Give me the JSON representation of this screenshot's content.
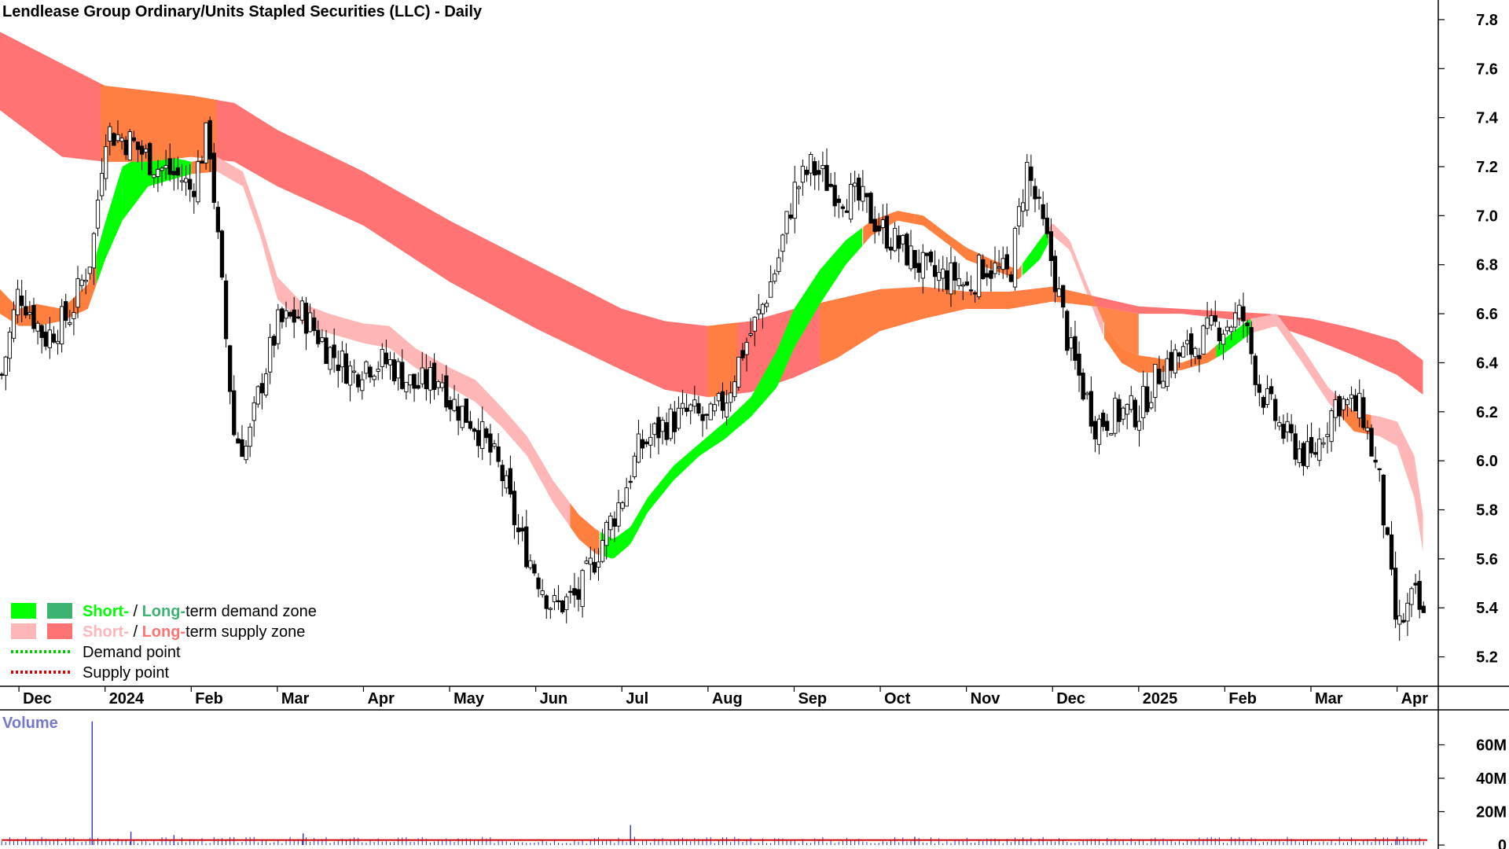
{
  "title": "Lendlease Group Ordinary/Units Stapled Securities (LLC) - Daily",
  "volume_label": "Volume",
  "legend": {
    "items": [
      {
        "swatches": [
          "#00ff00",
          "#3cb371"
        ],
        "part1": "Short-",
        "sep": " / ",
        "part2": "Long-",
        "rest": "term demand zone",
        "color1": "#00ff00",
        "color2": "#3cb371",
        "kind": "box"
      },
      {
        "swatches": [
          "#ffb6b6",
          "#ff7373"
        ],
        "part1": "Short-",
        "sep": " / ",
        "part2": "Long-",
        "rest": "term supply zone",
        "color1": "#ffb6b6",
        "color2": "#ff7373",
        "kind": "box"
      },
      {
        "swatches": [
          "#00cc00"
        ],
        "part1": "",
        "sep": "",
        "part2": "",
        "rest": "Demand point",
        "color1": "#000000",
        "color2": "#000000",
        "kind": "dots"
      },
      {
        "swatches": [
          "#dd0000"
        ],
        "part1": "",
        "sep": "",
        "part2": "",
        "rest": "Supply point",
        "color1": "#000000",
        "color2": "#000000",
        "kind": "dots"
      }
    ]
  },
  "colors": {
    "candle": "#000000",
    "long_supply": "#ff7373",
    "short_supply": "#ffb6b6",
    "short_demand": "#00ff00",
    "overlap": "#ff7f3f",
    "volume_bar": "#3333cc",
    "volume_line": "#cc0000",
    "axis_text": "#000000",
    "volume_text": "#7777cc"
  },
  "chart_data": {
    "type": "line",
    "subtype": "candlestick",
    "title": "Lendlease Group Ordinary/Units Stapled Securities (LLC) - Daily",
    "price_axis": {
      "ticks": [
        "5.2",
        "5.4",
        "5.6",
        "5.8",
        "6.0",
        "6.2",
        "6.4",
        "6.6",
        "6.8",
        "7.0",
        "7.2",
        "7.4",
        "7.6",
        "7.8"
      ],
      "range": [
        5.08,
        7.88
      ],
      "side": "right"
    },
    "volume_axis": {
      "ticks": [
        "0",
        "20M",
        "40M",
        "60M"
      ],
      "range": [
        0,
        80
      ],
      "unit": "M",
      "side": "right"
    },
    "month_labels": [
      "Dec",
      "2024",
      "Feb",
      "Mar",
      "Apr",
      "May",
      "Jun",
      "Jul",
      "Aug",
      "Sep",
      "Oct",
      "Nov",
      "Dec",
      "2025",
      "Feb",
      "Mar",
      "Apr"
    ],
    "month_pos": [
      0.0,
      1.0,
      2.0,
      3.0,
      4.0,
      5.0,
      6.0,
      7.0,
      8.0,
      9.0,
      10.0,
      11.0,
      12.0,
      13.0,
      14.0,
      15.0,
      16.0
    ],
    "x_range": [
      -0.22,
      16.46
    ],
    "close_series": {
      "name": "Close",
      "x": [
        -0.2,
        0.0,
        0.3,
        0.6,
        0.85,
        1.0,
        1.3,
        1.6,
        1.9,
        2.0,
        2.2,
        2.5,
        2.65,
        2.8,
        3.0,
        3.3,
        3.6,
        3.9,
        4.0,
        4.3,
        4.6,
        4.9,
        5.0,
        5.3,
        5.6,
        5.8,
        6.0,
        6.2,
        6.5,
        6.8,
        7.0,
        7.2,
        7.5,
        7.8,
        8.0,
        8.2,
        8.4,
        8.6,
        8.8,
        9.0,
        9.2,
        9.5,
        9.8,
        10.0,
        10.3,
        10.6,
        10.9,
        11.0,
        11.2,
        11.5,
        11.7,
        11.85,
        12.0,
        12.2,
        12.5,
        12.8,
        13.0,
        13.3,
        13.6,
        13.9,
        14.0,
        14.2,
        14.4,
        14.7,
        15.0,
        15.3,
        15.6,
        15.8,
        15.95,
        16.0,
        16.2,
        16.35
      ],
      "y": [
        6.35,
        6.7,
        6.5,
        6.6,
        6.85,
        7.35,
        7.3,
        7.2,
        7.15,
        7.1,
        7.35,
        6.1,
        6.05,
        6.3,
        6.55,
        6.6,
        6.45,
        6.35,
        6.4,
        6.4,
        6.3,
        6.35,
        6.25,
        6.15,
        5.95,
        5.7,
        5.55,
        5.4,
        5.45,
        5.7,
        5.85,
        6.05,
        6.15,
        6.2,
        6.15,
        6.25,
        6.45,
        6.6,
        6.8,
        7.1,
        7.2,
        7.1,
        7.05,
        6.95,
        6.85,
        6.75,
        6.75,
        6.7,
        6.8,
        6.75,
        7.2,
        7.0,
        6.8,
        6.45,
        6.15,
        6.2,
        6.2,
        6.4,
        6.45,
        6.55,
        6.55,
        6.6,
        6.3,
        6.1,
        6.0,
        6.25,
        6.2,
        5.9,
        5.45,
        5.3,
        5.45,
        5.3
      ]
    },
    "long_term_band": {
      "name": "Long-term zone",
      "x": [
        -0.22,
        0.5,
        1.0,
        1.5,
        2.0,
        2.5,
        3.0,
        4.0,
        5.0,
        6.0,
        7.0,
        7.5,
        8.0,
        8.5,
        9.0,
        9.5,
        10.0,
        10.5,
        11.0,
        11.5,
        12.0,
        12.5,
        13.0,
        13.5,
        14.0,
        14.5,
        15.0,
        15.5,
        16.0,
        16.3
      ],
      "upper": [
        7.75,
        7.62,
        7.53,
        7.51,
        7.49,
        7.46,
        7.35,
        7.18,
        6.98,
        6.8,
        6.62,
        6.57,
        6.55,
        6.57,
        6.62,
        6.66,
        6.7,
        6.71,
        6.69,
        6.69,
        6.71,
        6.67,
        6.63,
        6.62,
        6.61,
        6.6,
        6.58,
        6.54,
        6.49,
        6.41
      ],
      "lower": [
        7.43,
        7.24,
        7.22,
        7.22,
        7.24,
        7.22,
        7.12,
        6.96,
        6.73,
        6.54,
        6.37,
        6.29,
        6.26,
        6.28,
        6.34,
        6.42,
        6.53,
        6.58,
        6.62,
        6.62,
        6.65,
        6.63,
        6.6,
        6.6,
        6.58,
        6.56,
        6.5,
        6.43,
        6.35,
        6.27
      ]
    },
    "short_term_band": {
      "name": "Short-term zone",
      "x": [
        -0.22,
        0.0,
        0.2,
        0.5,
        0.8,
        1.0,
        1.2,
        1.5,
        2.0,
        2.3,
        2.6,
        2.8,
        3.0,
        3.3,
        3.6,
        4.0,
        4.3,
        4.6,
        5.0,
        5.3,
        5.6,
        5.9,
        6.2,
        6.5,
        6.7,
        6.9,
        7.1,
        7.3,
        7.6,
        7.9,
        8.2,
        8.5,
        8.8,
        9.0,
        9.3,
        9.6,
        9.9,
        10.2,
        10.5,
        10.8,
        11.0,
        11.3,
        11.6,
        11.85,
        12.0,
        12.2,
        12.4,
        12.6,
        12.8,
        13.0,
        13.2,
        13.5,
        13.8,
        14.0,
        14.3,
        14.6,
        14.9,
        15.2,
        15.5,
        15.8,
        16.0,
        16.2,
        16.3
      ],
      "upper": [
        6.7,
        6.62,
        6.64,
        6.62,
        6.72,
        6.97,
        7.2,
        7.26,
        7.22,
        7.24,
        7.18,
        6.98,
        6.75,
        6.64,
        6.6,
        6.56,
        6.55,
        6.46,
        6.38,
        6.33,
        6.22,
        6.1,
        5.92,
        5.78,
        5.72,
        5.68,
        5.73,
        5.85,
        5.98,
        6.07,
        6.16,
        6.26,
        6.45,
        6.62,
        6.78,
        6.9,
        6.98,
        7.02,
        7.0,
        6.92,
        6.87,
        6.82,
        6.78,
        6.9,
        6.97,
        6.9,
        6.72,
        6.56,
        6.46,
        6.43,
        6.42,
        6.4,
        6.44,
        6.5,
        6.58,
        6.6,
        6.46,
        6.3,
        6.2,
        6.18,
        6.16,
        6.02,
        5.78
      ],
      "lower": [
        6.6,
        6.55,
        6.55,
        6.57,
        6.62,
        6.82,
        6.98,
        7.12,
        7.17,
        7.18,
        7.12,
        6.92,
        6.66,
        6.56,
        6.52,
        6.48,
        6.46,
        6.38,
        6.3,
        6.24,
        6.14,
        6.02,
        5.83,
        5.68,
        5.62,
        5.6,
        5.66,
        5.79,
        5.92,
        6.02,
        6.09,
        6.18,
        6.3,
        6.46,
        6.64,
        6.8,
        6.92,
        6.98,
        6.96,
        6.88,
        6.82,
        6.78,
        6.74,
        6.82,
        6.92,
        6.86,
        6.68,
        6.5,
        6.4,
        6.36,
        6.36,
        6.37,
        6.4,
        6.44,
        6.52,
        6.55,
        6.4,
        6.24,
        6.12,
        6.1,
        6.06,
        5.85,
        5.63
      ]
    },
    "volume": {
      "name": "Volume",
      "unit": "M",
      "spikes": [
        {
          "x": 0.85,
          "y": 74
        },
        {
          "x": 1.3,
          "y": 8
        },
        {
          "x": 1.8,
          "y": 6
        },
        {
          "x": 3.3,
          "y": 7
        },
        {
          "x": 7.1,
          "y": 12
        },
        {
          "x": 10.4,
          "y": 5
        },
        {
          "x": 16.0,
          "y": 5
        }
      ],
      "avg": 3
    },
    "grid": false,
    "legend_position": "bottom-left"
  }
}
